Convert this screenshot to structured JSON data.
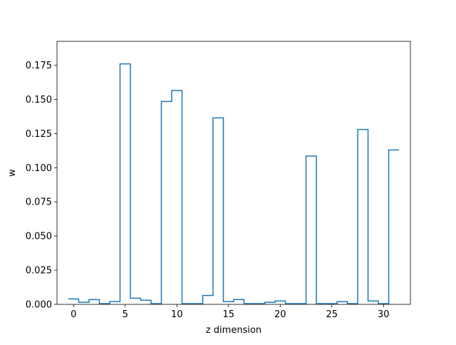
{
  "chart_data": {
    "type": "step",
    "title": "",
    "xlabel": "z dimension",
    "ylabel": "w",
    "xlim": [
      -1.6,
      32.6
    ],
    "ylim": [
      0,
      0.1925
    ],
    "x_ticks": [
      0,
      5,
      10,
      15,
      20,
      25,
      30
    ],
    "y_ticks": [
      0.0,
      0.025,
      0.05,
      0.075,
      0.1,
      0.125,
      0.15,
      0.175
    ],
    "y_tick_labels": [
      "0.000",
      "0.025",
      "0.050",
      "0.075",
      "0.100",
      "0.125",
      "0.150",
      "0.175"
    ],
    "grid": false,
    "series": [
      {
        "color": "#1f77b4",
        "x": [
          0,
          1,
          2,
          3,
          4,
          5,
          6,
          7,
          8,
          9,
          10,
          11,
          12,
          13,
          14,
          15,
          16,
          17,
          18,
          19,
          20,
          21,
          22,
          23,
          24,
          25,
          26,
          27,
          28,
          29,
          30,
          31
        ],
        "values": [
          0.004,
          0.0015,
          0.0035,
          0.0005,
          0.002,
          0.176,
          0.0045,
          0.003,
          0.0005,
          0.1485,
          0.1565,
          0.0005,
          0.0005,
          0.0065,
          0.1365,
          0.002,
          0.0035,
          0.0005,
          0.0005,
          0.0015,
          0.0025,
          0.0005,
          0.0005,
          0.1085,
          0.0005,
          0.0005,
          0.002,
          0.0005,
          0.128,
          0.0025,
          0.0005,
          0.113
        ]
      }
    ]
  }
}
